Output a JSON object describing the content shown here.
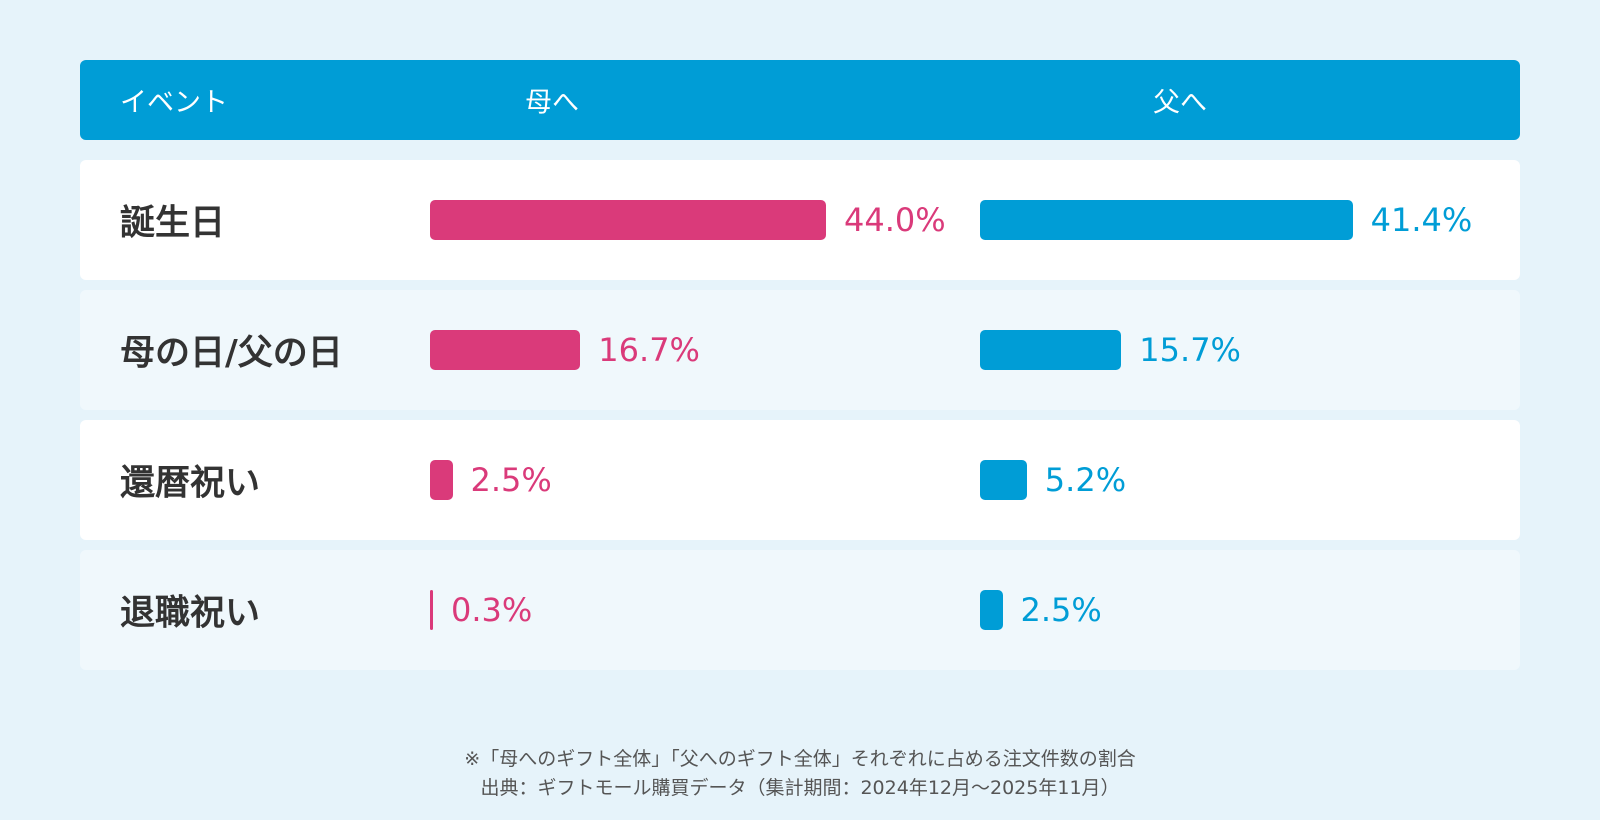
{
  "colors": {
    "mother": "#da3a7a",
    "father": "#009dd6",
    "header": "#009dd6"
  },
  "header": {
    "event": "イベント",
    "mother": "母へ",
    "father": "父へ"
  },
  "chart_data": {
    "type": "bar",
    "orientation": "horizontal",
    "categories": [
      "誕生日",
      "母の日/父の日",
      "還暦祝い",
      "退職祝い"
    ],
    "series": [
      {
        "name": "母へ",
        "values": [
          44.0,
          16.7,
          2.5,
          0.3
        ],
        "labels": [
          "44.0%",
          "16.7%",
          "2.5%",
          "0.3%"
        ]
      },
      {
        "name": "父へ",
        "values": [
          41.4,
          15.7,
          5.2,
          2.5
        ],
        "labels": [
          "41.4%",
          "15.7%",
          "5.2%",
          "2.5%"
        ]
      }
    ],
    "unit": "%"
  },
  "notes": {
    "line1": "※「母へのギフト全体」「父へのギフト全体」それぞれに占める注文件数の割合",
    "line2": "出典：ギフトモール購買データ（集計期間：2024年12月〜2025年11月）"
  }
}
